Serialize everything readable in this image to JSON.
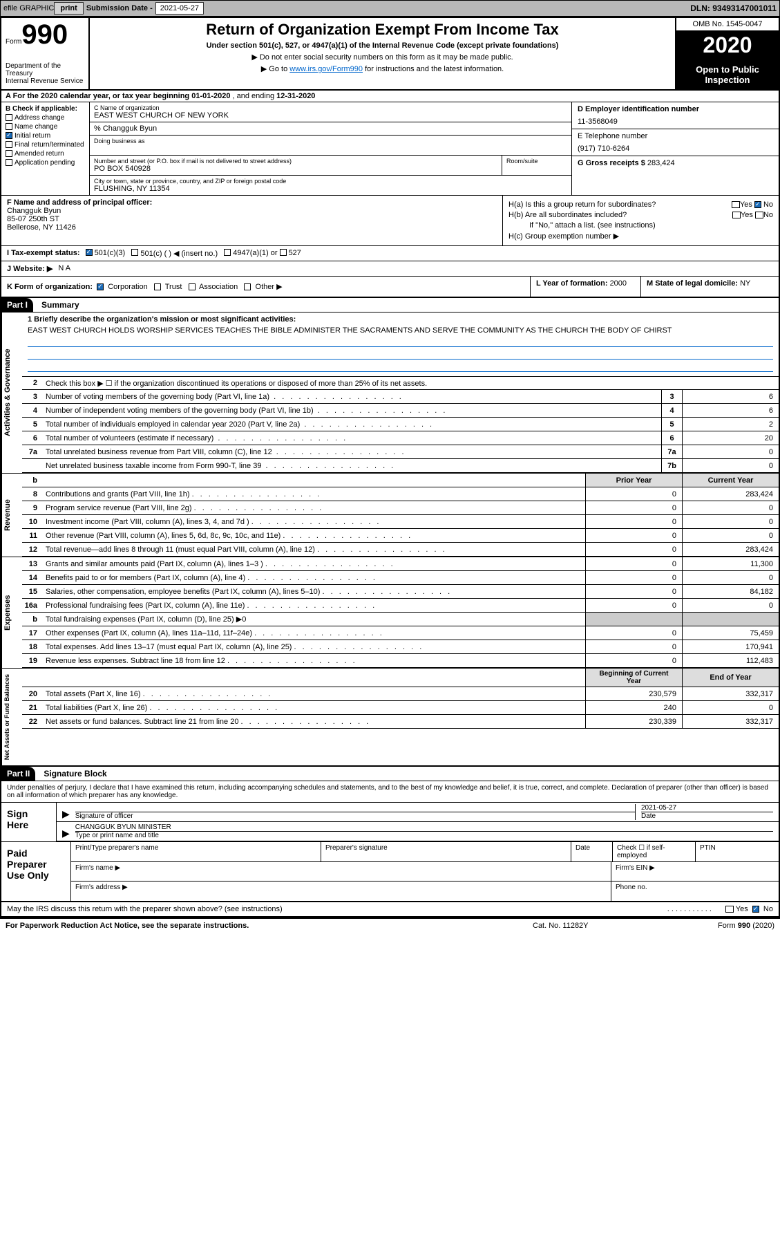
{
  "topbar": {
    "efile_label": "efile GRAPHIC",
    "print_btn": "print",
    "submission_label": "Submission Date - ",
    "submission_date": "2021-05-27",
    "dln_label": "DLN: ",
    "dln": "93493147001011"
  },
  "header": {
    "form_label": "Form",
    "form_number": "990",
    "dept": "Department of the Treasury\nInternal Revenue Service",
    "title": "Return of Organization Exempt From Income Tax",
    "subtitle": "Under section 501(c), 527, or 4947(a)(1) of the Internal Revenue Code (except private foundations)",
    "note1": "▶ Do not enter social security numbers on this form as it may be made public.",
    "note2_prefix": "▶ Go to ",
    "note2_link": "www.irs.gov/Form990",
    "note2_suffix": " for instructions and the latest information.",
    "omb": "OMB No. 1545-0047",
    "year": "2020",
    "inspect": "Open to Public Inspection"
  },
  "row_a": {
    "text": "A For the 2020 calendar year, or tax year beginning ",
    "begin": "01-01-2020",
    "mid": " , and ending ",
    "end": "12-31-2020"
  },
  "section_b": {
    "label": "B Check if applicable:",
    "items": [
      "Address change",
      "Name change",
      "Initial return",
      "Final return/terminated",
      "Amended return",
      "Application pending"
    ],
    "checked_idx": 2
  },
  "section_c": {
    "name_label": "C Name of organization",
    "org_name": "EAST WEST CHURCH OF NEW YORK",
    "care_of": "% Changguk Byun",
    "dba_label": "Doing business as",
    "addr_label": "Number and street (or P.O. box if mail is not delivered to street address)",
    "room_label": "Room/suite",
    "addr": "PO BOX 540928",
    "city_label": "City or town, state or province, country, and ZIP or foreign postal code",
    "city": "FLUSHING, NY  11354"
  },
  "section_d": {
    "ein_label": "D Employer identification number",
    "ein": "11-3568049",
    "phone_label": "E Telephone number",
    "phone": "(917) 710-6264",
    "gross_label": "G Gross receipts $ ",
    "gross": "283,424"
  },
  "section_f": {
    "label": "F Name and address of principal officer:",
    "name": "Changguk Byun",
    "addr1": "85-07 250th ST",
    "addr2": "Bellerose, NY  11426"
  },
  "section_h": {
    "ha_label": "H(a)  Is this a group return for subordinates?",
    "hb_label": "H(b)  Are all subordinates included?",
    "hb_note": "If \"No,\" attach a list. (see instructions)",
    "hc_label": "H(c)  Group exemption number ▶",
    "yes": "Yes",
    "no": "No"
  },
  "tax_status": {
    "label": "I  Tax-exempt status:",
    "opt1": "501(c)(3)",
    "opt2": "501(c) (   ) ◀ (insert no.)",
    "opt3": "4947(a)(1) or",
    "opt4": "527"
  },
  "website": {
    "label": "J  Website: ▶",
    "value": "N A"
  },
  "section_k": {
    "label": "K Form of organization:",
    "opts": [
      "Corporation",
      "Trust",
      "Association",
      "Other ▶"
    ]
  },
  "section_l": {
    "label": "L Year of formation: ",
    "value": "2000"
  },
  "section_m": {
    "label": "M State of legal domicile: ",
    "value": "NY"
  },
  "part1": {
    "hdr": "Part I",
    "title": "Summary",
    "brief_label": "1  Briefly describe the organization's mission or most significant activities:",
    "brief_text": "EAST WEST CHURCH HOLDS WORSHIP SERVICES TEACHES THE BIBLE ADMINISTER THE SACRAMENTS AND SERVE THE COMMUNITY AS THE CHURCH THE BODY OF CHIRST",
    "line2": "Check this box ▶ ☐ if the organization discontinued its operations or disposed of more than 25% of its net assets.",
    "activities_tab": "Activities & Governance",
    "revenue_tab": "Revenue",
    "expenses_tab": "Expenses",
    "netassets_tab": "Net Assets or Fund Balances",
    "lines_gov": [
      {
        "n": "3",
        "t": "Number of voting members of the governing body (Part VI, line 1a)",
        "box": "3",
        "v": "6"
      },
      {
        "n": "4",
        "t": "Number of independent voting members of the governing body (Part VI, line 1b)",
        "box": "4",
        "v": "6"
      },
      {
        "n": "5",
        "t": "Total number of individuals employed in calendar year 2020 (Part V, line 2a)",
        "box": "5",
        "v": "2"
      },
      {
        "n": "6",
        "t": "Total number of volunteers (estimate if necessary)",
        "box": "6",
        "v": "20"
      },
      {
        "n": "7a",
        "t": "Total unrelated business revenue from Part VIII, column (C), line 12",
        "box": "7a",
        "v": "0"
      },
      {
        "n": "",
        "t": "Net unrelated business taxable income from Form 990-T, line 39",
        "box": "7b",
        "v": "0"
      }
    ],
    "prior_hdr": "Prior Year",
    "current_hdr": "Current Year",
    "lines_rev": [
      {
        "n": "8",
        "t": "Contributions and grants (Part VIII, line 1h)",
        "p": "0",
        "c": "283,424"
      },
      {
        "n": "9",
        "t": "Program service revenue (Part VIII, line 2g)",
        "p": "0",
        "c": "0"
      },
      {
        "n": "10",
        "t": "Investment income (Part VIII, column (A), lines 3, 4, and 7d )",
        "p": "0",
        "c": "0"
      },
      {
        "n": "11",
        "t": "Other revenue (Part VIII, column (A), lines 5, 6d, 8c, 9c, 10c, and 11e)",
        "p": "0",
        "c": "0"
      },
      {
        "n": "12",
        "t": "Total revenue—add lines 8 through 11 (must equal Part VIII, column (A), line 12)",
        "p": "0",
        "c": "283,424"
      }
    ],
    "lines_exp": [
      {
        "n": "13",
        "t": "Grants and similar amounts paid (Part IX, column (A), lines 1–3 )",
        "p": "0",
        "c": "11,300"
      },
      {
        "n": "14",
        "t": "Benefits paid to or for members (Part IX, column (A), line 4)",
        "p": "0",
        "c": "0"
      },
      {
        "n": "15",
        "t": "Salaries, other compensation, employee benefits (Part IX, column (A), lines 5–10)",
        "p": "0",
        "c": "84,182"
      },
      {
        "n": "16a",
        "t": "Professional fundraising fees (Part IX, column (A), line 11e)",
        "p": "0",
        "c": "0"
      },
      {
        "n": "b",
        "t": "Total fundraising expenses (Part IX, column (D), line 25) ▶0",
        "p": "",
        "c": "",
        "shaded": true
      },
      {
        "n": "17",
        "t": "Other expenses (Part IX, column (A), lines 11a–11d, 11f–24e)",
        "p": "0",
        "c": "75,459"
      },
      {
        "n": "18",
        "t": "Total expenses. Add lines 13–17 (must equal Part IX, column (A), line 25)",
        "p": "0",
        "c": "170,941"
      },
      {
        "n": "19",
        "t": "Revenue less expenses. Subtract line 18 from line 12",
        "p": "0",
        "c": "112,483"
      }
    ],
    "begin_hdr": "Beginning of Current Year",
    "end_hdr": "End of Year",
    "lines_net": [
      {
        "n": "20",
        "t": "Total assets (Part X, line 16)",
        "p": "230,579",
        "c": "332,317"
      },
      {
        "n": "21",
        "t": "Total liabilities (Part X, line 26)",
        "p": "240",
        "c": "0"
      },
      {
        "n": "22",
        "t": "Net assets or fund balances. Subtract line 21 from line 20",
        "p": "230,339",
        "c": "332,317"
      }
    ]
  },
  "part2": {
    "hdr": "Part II",
    "title": "Signature Block",
    "intro": "Under penalties of perjury, I declare that I have examined this return, including accompanying schedules and statements, and to the best of my knowledge and belief, it is true, correct, and complete. Declaration of preparer (other than officer) is based on all information of which preparer has any knowledge.",
    "sign_here": "Sign Here",
    "sig_label": "Signature of officer",
    "date_label": "Date",
    "date_val": "2021-05-27",
    "name_title": "CHANGGUK BYUN  MINISTER",
    "name_label": "Type or print name and title",
    "paid_label": "Paid Preparer Use Only",
    "prep_name": "Print/Type preparer's name",
    "prep_sig": "Preparer's signature",
    "prep_date": "Date",
    "prep_check": "Check ☐ if self-employed",
    "ptin": "PTIN",
    "firm_name": "Firm's name   ▶",
    "firm_ein": "Firm's EIN ▶",
    "firm_addr": "Firm's address ▶",
    "firm_phone": "Phone no."
  },
  "footer": {
    "discuss": "May the IRS discuss this return with the preparer shown above? (see instructions)",
    "paperwork": "For Paperwork Reduction Act Notice, see the separate instructions.",
    "cat": "Cat. No. 11282Y",
    "form": "Form 990 (2020)"
  }
}
